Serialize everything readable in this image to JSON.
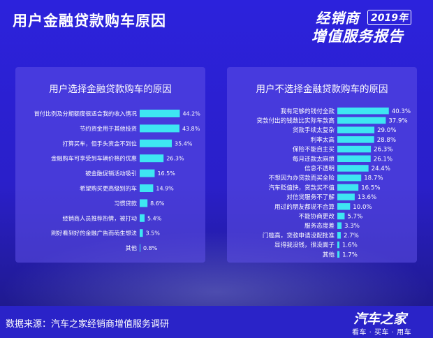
{
  "header": {
    "title": "用户金融贷款购车原因",
    "badge_line1": "经销商",
    "badge_year": "2019年",
    "badge_line2": "增值服务报告"
  },
  "footer": {
    "source": "数据来源：汽车之家经销商增值服务调研",
    "brand": "汽车之家",
    "slogan": "看车 · 买车 · 用车"
  },
  "colors": {
    "bar": "#3ee6f2",
    "background": "#2b1fd6",
    "panel": "#5f50e6"
  },
  "chart_data": [
    {
      "type": "bar",
      "orientation": "horizontal",
      "title": "用户选择金融贷款购车的原因",
      "unit": "%",
      "categories": [
        "首付比例及分期额度很适合我的收入情况",
        "节约资金用于其他投资",
        "打算买车，但手头资金不到位",
        "金融购车可享受到车辆价格的优惠",
        "被金融促销活动吸引",
        "希望购买更高级别的车",
        "习惯贷款",
        "经销商人员推荐热情，被打动",
        "刚好看到好的金融广告而萌生想法",
        "其他"
      ],
      "values": [
        44.2,
        43.8,
        35.4,
        26.3,
        16.5,
        14.9,
        8.6,
        5.4,
        3.5,
        0.8
      ],
      "value_labels": [
        "44.2%",
        "43.8%",
        "35.4%",
        "26.3%",
        "16.5%",
        "14.9%",
        "8.6%",
        "5.4%",
        "3.5%",
        "0.8%"
      ]
    },
    {
      "type": "bar",
      "orientation": "horizontal",
      "title": "用户不选择金融贷款购车的原因",
      "unit": "%",
      "categories": [
        "我有足够的钱付全款",
        "贷款付出的钱数比实际车款高",
        "贷款手续太复杂",
        "利率太高",
        "保险不能自主买",
        "每月还款太麻烦",
        "信息不透明",
        "不想因为办贷款而买全险",
        "汽车贬值快，贷款买不值",
        "对信贷服务不了解",
        "用过的朋友都说不合算",
        "不能协商更改",
        "服务态度差",
        "门槛高，贷款申请没配批准",
        "显得我没钱，很没面子",
        "其他"
      ],
      "values": [
        40.3,
        37.9,
        29.0,
        28.8,
        26.3,
        26.1,
        24.4,
        18.7,
        16.5,
        13.6,
        10.0,
        5.7,
        3.3,
        2.7,
        1.6,
        1.7
      ],
      "value_labels": [
        "40.3%",
        "37.9%",
        "29.0%",
        "28.8%",
        "26.3%",
        "26.1%",
        "24.4%",
        "18.7%",
        "16.5%",
        "13.6%",
        "10.0%",
        "5.7%",
        "3.3%",
        "2.7%",
        "1.6%",
        "1.7%"
      ]
    }
  ]
}
